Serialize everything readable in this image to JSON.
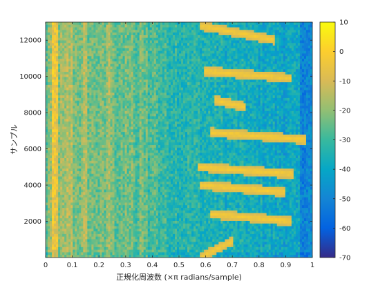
{
  "chart_data": {
    "type": "heatmap",
    "title": "",
    "xlabel": "正規化周波数 (×π radians/sample)",
    "ylabel": "サンプル",
    "xlim": [
      0,
      1
    ],
    "ylim": [
      0,
      13000
    ],
    "x_ticks": [
      0,
      0.1,
      0.2,
      0.3,
      0.4,
      0.5,
      0.6,
      0.7,
      0.8,
      0.9,
      1
    ],
    "x_tick_labels": [
      "0",
      "0.1",
      "0.2",
      "0.3",
      "0.4",
      "0.5",
      "0.6",
      "0.7",
      "0.8",
      "0.9",
      "1"
    ],
    "y_ticks": [
      2000,
      4000,
      6000,
      8000,
      10000,
      12000
    ],
    "y_tick_labels": [
      "2000",
      "4000",
      "6000",
      "8000",
      "10000",
      "12000"
    ],
    "colorbar": {
      "range": [
        -70,
        10
      ],
      "ticks": [
        -70,
        -60,
        -50,
        -40,
        -30,
        -20,
        -10,
        0,
        10
      ],
      "tick_labels": [
        "-70",
        "-60",
        "-50",
        "-40",
        "-30",
        "-20",
        "-10",
        "0",
        "10"
      ]
    },
    "colormap": "parula",
    "grid": false,
    "chirps": [
      {
        "t": [
          0,
          900
        ],
        "f": [
          0.58,
          0.7
        ]
      },
      {
        "t": [
          2400,
          2000
        ],
        "f": [
          0.62,
          0.92
        ]
      },
      {
        "t": [
          4000,
          3600
        ],
        "f": [
          0.58,
          0.9
        ]
      },
      {
        "t": [
          5000,
          4600
        ],
        "f": [
          0.57,
          0.93
        ]
      },
      {
        "t": [
          6900,
          6500
        ],
        "f": [
          0.62,
          0.98
        ]
      },
      {
        "t": [
          8700,
          8300
        ],
        "f": [
          0.63,
          0.75
        ]
      },
      {
        "t": [
          10300,
          9900
        ],
        "f": [
          0.59,
          0.92
        ]
      },
      {
        "t": [
          12800,
          12000
        ],
        "f": [
          0.58,
          0.86
        ]
      }
    ]
  }
}
